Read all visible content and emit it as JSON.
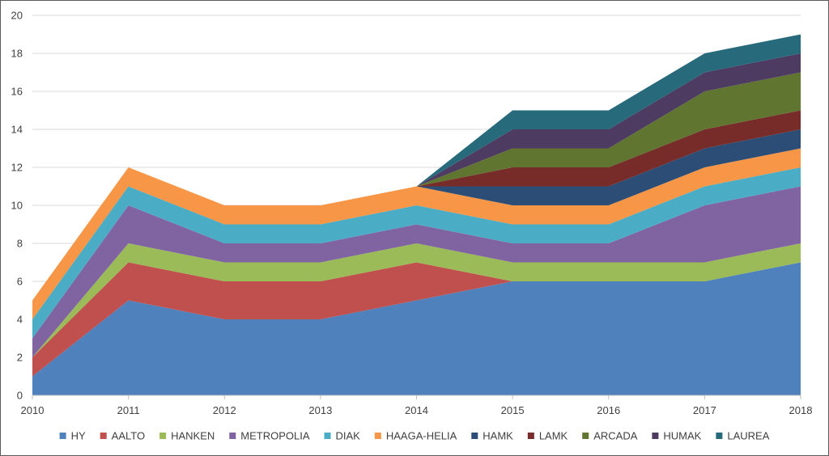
{
  "chart_data": {
    "type": "area",
    "stacked": true,
    "title": "",
    "xlabel": "",
    "ylabel": "",
    "x": [
      "2010",
      "2011",
      "2012",
      "2013",
      "2014",
      "2015",
      "2016",
      "2017",
      "2018"
    ],
    "ylim": [
      0,
      20
    ],
    "yticks": [
      "0",
      "2",
      "4",
      "6",
      "8",
      "10",
      "12",
      "14",
      "16",
      "18",
      "20"
    ],
    "grid": true,
    "legend_position": "bottom",
    "series": [
      {
        "name": "HY",
        "color": "#4F81BD",
        "values": [
          1,
          5,
          4,
          4,
          5,
          6,
          6,
          6,
          7
        ]
      },
      {
        "name": "AALTO",
        "color": "#C0504D",
        "values": [
          1,
          2,
          2,
          2,
          2,
          0,
          0,
          0,
          0
        ]
      },
      {
        "name": "HANKEN",
        "color": "#9BBB59",
        "values": [
          0,
          1,
          1,
          1,
          1,
          1,
          1,
          1,
          1
        ]
      },
      {
        "name": "METROPOLIA",
        "color": "#8064A2",
        "values": [
          1,
          2,
          1,
          1,
          1,
          1,
          1,
          3,
          3
        ]
      },
      {
        "name": "DIAK",
        "color": "#4BACC6",
        "values": [
          1,
          1,
          1,
          1,
          1,
          1,
          1,
          1,
          1
        ]
      },
      {
        "name": "HAAGA-HELIA",
        "color": "#F79646",
        "values": [
          1,
          1,
          1,
          1,
          1,
          1,
          1,
          1,
          1
        ]
      },
      {
        "name": "HAMK",
        "color": "#2C4D75",
        "values": [
          0,
          0,
          0,
          0,
          0,
          1,
          1,
          1,
          1
        ]
      },
      {
        "name": "LAMK",
        "color": "#772C2A",
        "values": [
          0,
          0,
          0,
          0,
          0,
          1,
          1,
          1,
          1
        ]
      },
      {
        "name": "ARCADA",
        "color": "#5F7530",
        "values": [
          0,
          0,
          0,
          0,
          0,
          1,
          1,
          2,
          2
        ]
      },
      {
        "name": "HUMAK",
        "color": "#4D3B62",
        "values": [
          0,
          0,
          0,
          0,
          0,
          1,
          1,
          1,
          1
        ]
      },
      {
        "name": "LAUREA",
        "color": "#276A7C",
        "values": [
          0,
          0,
          0,
          0,
          0,
          1,
          1,
          1,
          1
        ]
      }
    ]
  }
}
